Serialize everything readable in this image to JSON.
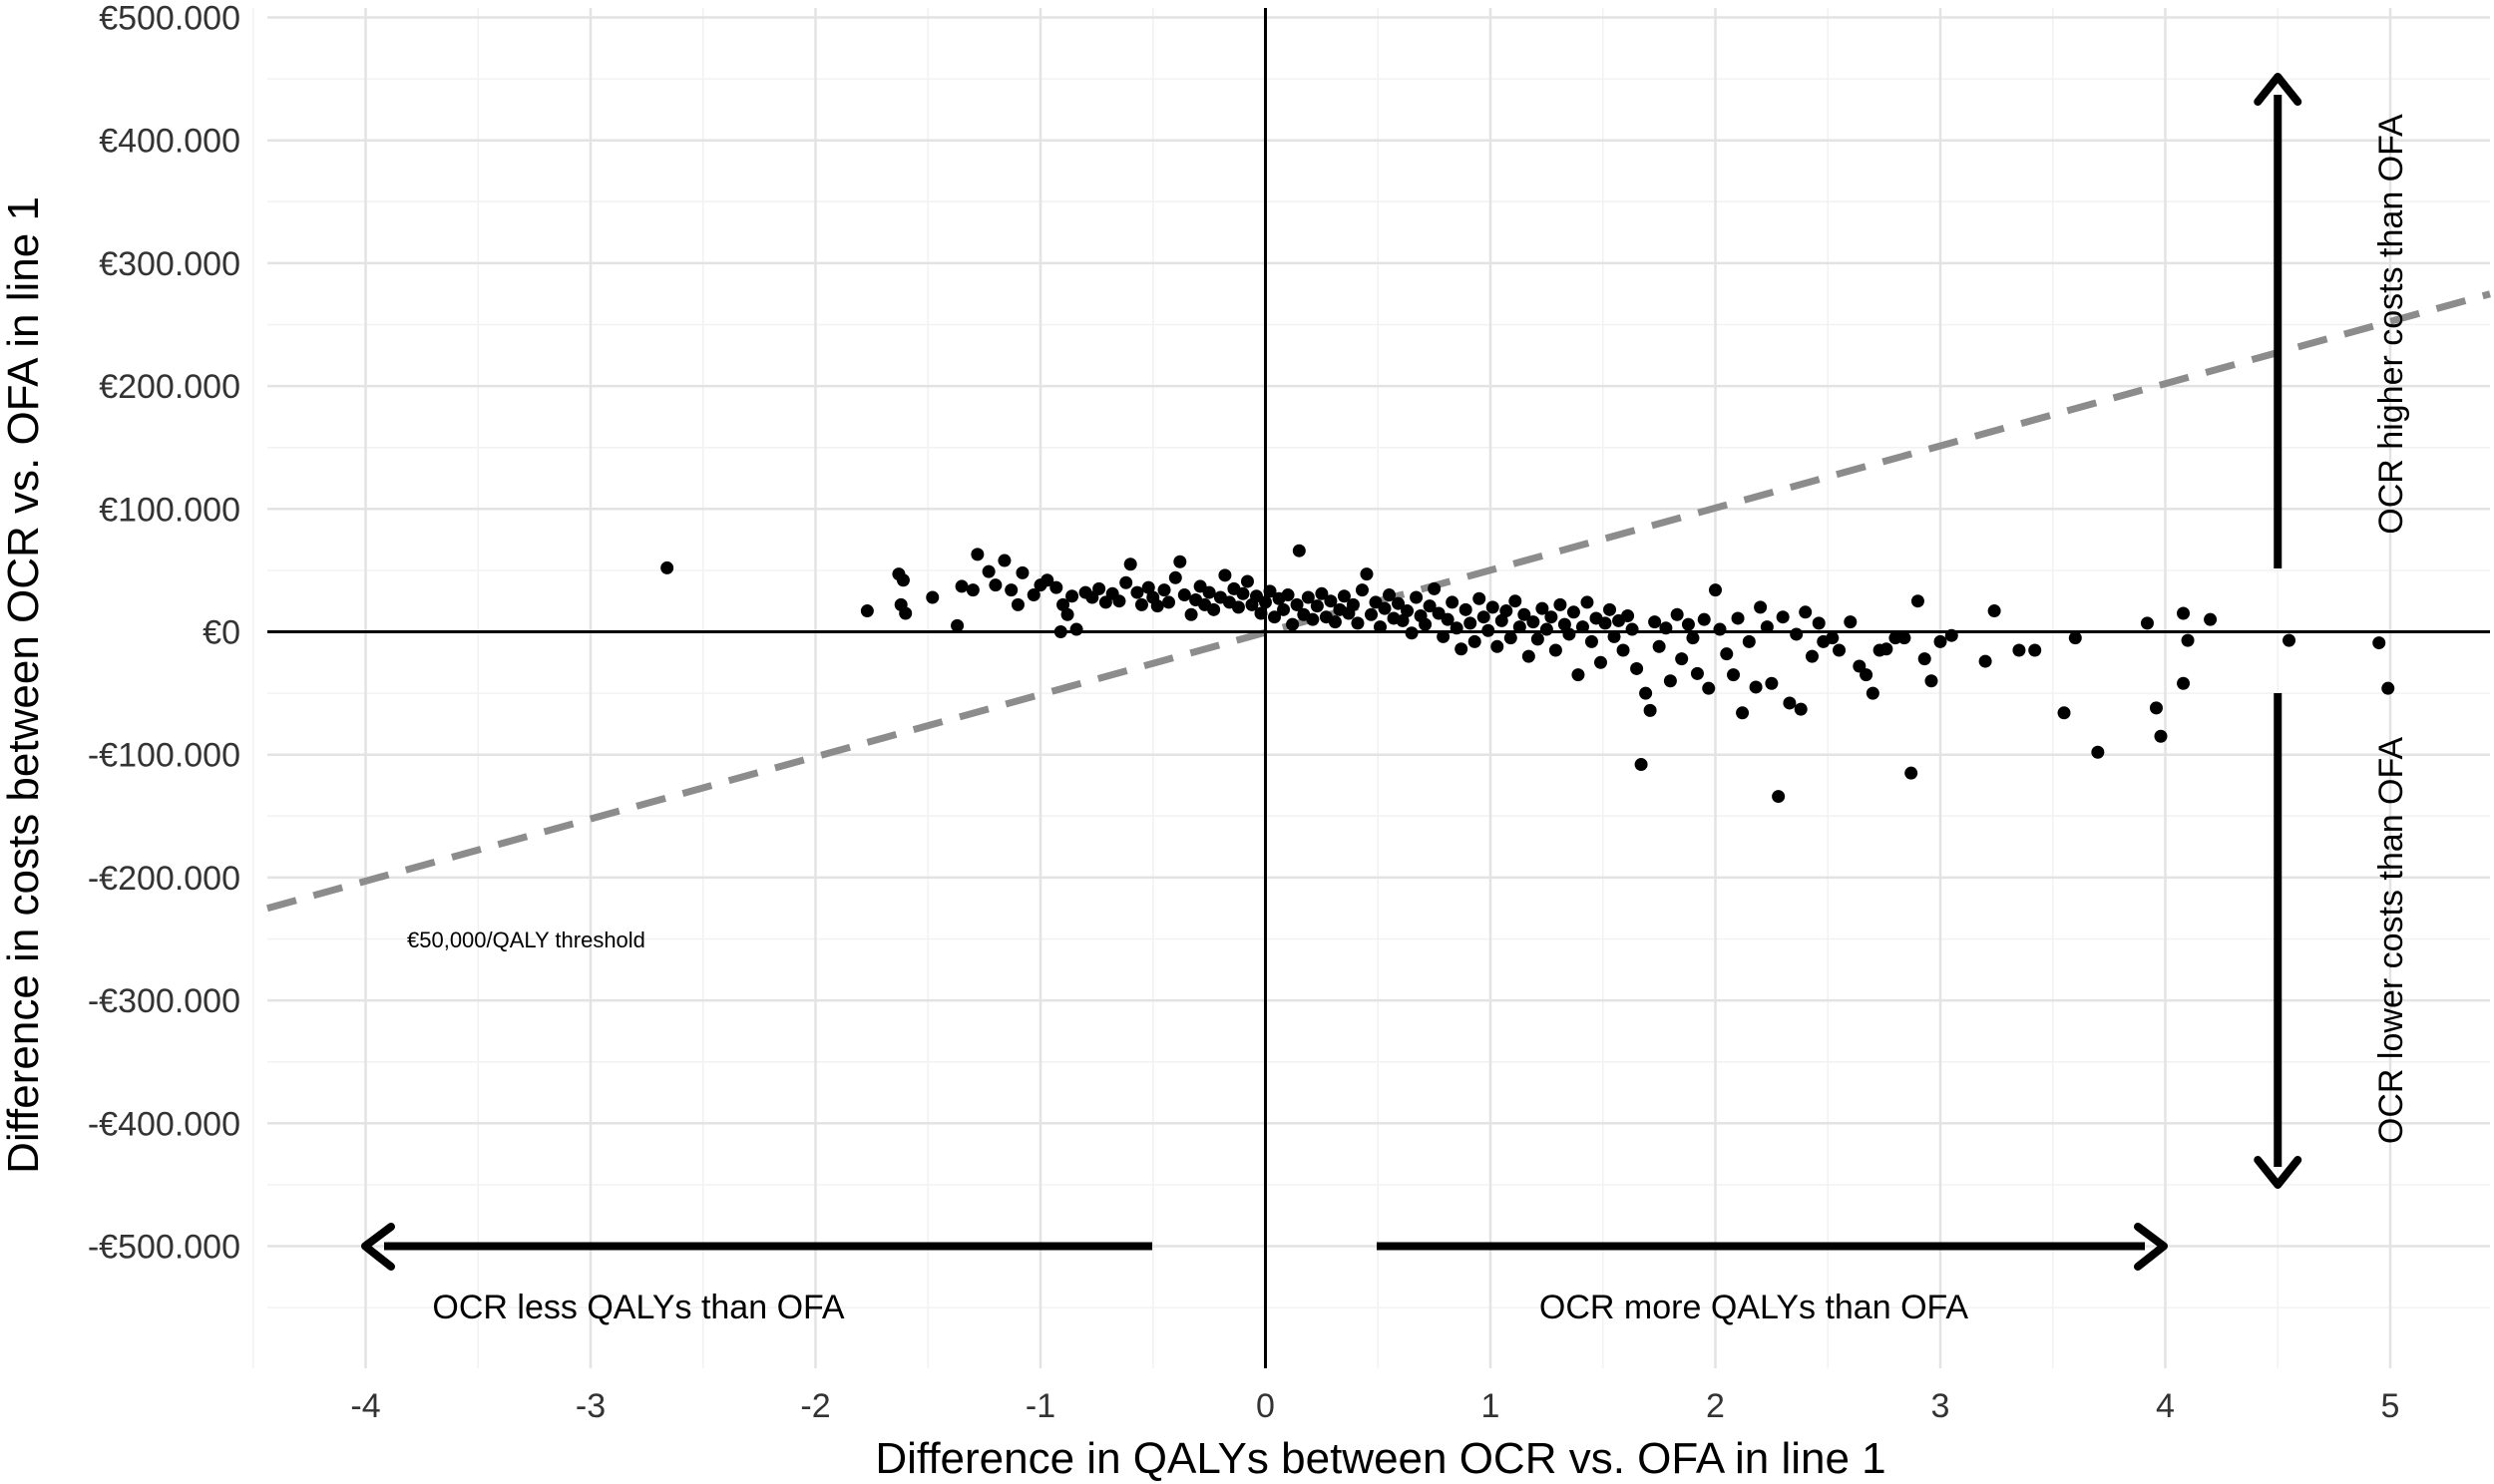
{
  "chart_data": {
    "type": "scatter",
    "title": "",
    "xlabel": "Difference in QALYs between OCR vs. OFA in line 1",
    "ylabel": "Difference in costs between OCR vs. OFA in line 1",
    "xlim": [
      -4.5,
      5.5
    ],
    "ylim": [
      -600000,
      500000
    ],
    "x_ticks": [
      -4,
      -3,
      -2,
      -1,
      0,
      1,
      2,
      3,
      4,
      5
    ],
    "x_tick_labels": [
      "-4",
      "-3",
      "-2",
      "-1",
      "0",
      "1",
      "2",
      "3",
      "4",
      "5"
    ],
    "y_ticks": [
      500000,
      400000,
      300000,
      200000,
      100000,
      0,
      -100000,
      -200000,
      -300000,
      -400000,
      -500000
    ],
    "y_tick_labels": [
      "€500.000",
      "€400.000",
      "€300.000",
      "€200.000",
      "€100.000",
      "€0",
      "-€100.000",
      "-€200.000",
      "-€300.000",
      "-€400.000",
      "-€500.000"
    ],
    "grid": true,
    "threshold": {
      "label": "€50,000/QALY threshold",
      "slope": 50000,
      "color": "#8c8c8c"
    },
    "annotations": {
      "left_arrow": "OCR less QALYs than OFA",
      "right_arrow": "OCR more QALYs than OFA",
      "up_arrow": "OCR higher costs than OFA",
      "down_arrow": "OCR lower costs than OFA"
    },
    "series": [
      {
        "points": [
          [
            -2.66,
            52000
          ],
          [
            -1.77,
            17000
          ],
          [
            -1.63,
            47000
          ],
          [
            -1.61,
            42000
          ],
          [
            -1.62,
            22000
          ],
          [
            -1.6,
            15000
          ],
          [
            -1.48,
            28000
          ],
          [
            -1.37,
            5000
          ],
          [
            -1.35,
            37000
          ],
          [
            -1.3,
            34000
          ],
          [
            -1.28,
            63000
          ],
          [
            -1.23,
            49000
          ],
          [
            -1.2,
            38000
          ],
          [
            -1.16,
            58000
          ],
          [
            -1.13,
            34000
          ],
          [
            -1.1,
            22000
          ],
          [
            -1.08,
            48000
          ],
          [
            -1.03,
            30000
          ],
          [
            -1.0,
            38000
          ],
          [
            -0.97,
            42000
          ],
          [
            -0.93,
            36000
          ],
          [
            -0.9,
            22000
          ],
          [
            -0.88,
            14000
          ],
          [
            -0.91,
            0
          ],
          [
            -0.86,
            29000
          ],
          [
            -0.84,
            2000
          ],
          [
            -0.8,
            32000
          ],
          [
            -0.77,
            28000
          ],
          [
            -0.74,
            35000
          ],
          [
            -0.71,
            24000
          ],
          [
            -0.68,
            31000
          ],
          [
            -0.65,
            25000
          ],
          [
            -0.62,
            40000
          ],
          [
            -0.6,
            55000
          ],
          [
            -0.57,
            32000
          ],
          [
            -0.55,
            22000
          ],
          [
            -0.52,
            36000
          ],
          [
            -0.5,
            28000
          ],
          [
            -0.48,
            21000
          ],
          [
            -0.45,
            34000
          ],
          [
            -0.43,
            24000
          ],
          [
            -0.4,
            44000
          ],
          [
            -0.38,
            57000
          ],
          [
            -0.36,
            30000
          ],
          [
            -0.33,
            14000
          ],
          [
            -0.31,
            26000
          ],
          [
            -0.29,
            37000
          ],
          [
            -0.27,
            22000
          ],
          [
            -0.25,
            32000
          ],
          [
            -0.23,
            18000
          ],
          [
            -0.2,
            28000
          ],
          [
            -0.18,
            46000
          ],
          [
            -0.16,
            24000
          ],
          [
            -0.14,
            35000
          ],
          [
            -0.12,
            20000
          ],
          [
            -0.1,
            31000
          ],
          [
            -0.08,
            41000
          ],
          [
            -0.06,
            22000
          ],
          [
            -0.04,
            29000
          ],
          [
            -0.02,
            15000
          ],
          [
            0.0,
            24000
          ],
          [
            0.02,
            33000
          ],
          [
            0.04,
            12000
          ],
          [
            0.06,
            27000
          ],
          [
            0.08,
            18000
          ],
          [
            0.1,
            30000
          ],
          [
            0.12,
            6000
          ],
          [
            0.14,
            22000
          ],
          [
            0.15,
            66000
          ],
          [
            0.17,
            14000
          ],
          [
            0.19,
            28000
          ],
          [
            0.21,
            10000
          ],
          [
            0.23,
            21000
          ],
          [
            0.25,
            31000
          ],
          [
            0.27,
            12000
          ],
          [
            0.29,
            25000
          ],
          [
            0.31,
            8000
          ],
          [
            0.33,
            18000
          ],
          [
            0.35,
            29000
          ],
          [
            0.37,
            15000
          ],
          [
            0.39,
            22000
          ],
          [
            0.41,
            7000
          ],
          [
            0.43,
            34000
          ],
          [
            0.45,
            47000
          ],
          [
            0.47,
            14000
          ],
          [
            0.49,
            24000
          ],
          [
            0.51,
            4000
          ],
          [
            0.53,
            19000
          ],
          [
            0.55,
            30000
          ],
          [
            0.57,
            11000
          ],
          [
            0.59,
            23000
          ],
          [
            0.61,
            9000
          ],
          [
            0.63,
            17000
          ],
          [
            0.65,
            -1000
          ],
          [
            0.67,
            28000
          ],
          [
            0.69,
            13000
          ],
          [
            0.71,
            6000
          ],
          [
            0.73,
            21000
          ],
          [
            0.75,
            35000
          ],
          [
            0.77,
            15000
          ],
          [
            0.79,
            -4000
          ],
          [
            0.81,
            10000
          ],
          [
            0.83,
            24000
          ],
          [
            0.85,
            3000
          ],
          [
            0.87,
            -14000
          ],
          [
            0.89,
            18000
          ],
          [
            0.91,
            7000
          ],
          [
            0.93,
            -8000
          ],
          [
            0.95,
            27000
          ],
          [
            0.97,
            12000
          ],
          [
            0.99,
            1000
          ],
          [
            1.01,
            20000
          ],
          [
            1.03,
            -12000
          ],
          [
            1.05,
            9000
          ],
          [
            1.07,
            17000
          ],
          [
            1.09,
            -5000
          ],
          [
            1.11,
            25000
          ],
          [
            1.13,
            4000
          ],
          [
            1.15,
            14000
          ],
          [
            1.17,
            -20000
          ],
          [
            1.19,
            8000
          ],
          [
            1.21,
            -6000
          ],
          [
            1.23,
            19000
          ],
          [
            1.25,
            2000
          ],
          [
            1.27,
            12000
          ],
          [
            1.29,
            -15000
          ],
          [
            1.31,
            22000
          ],
          [
            1.33,
            6000
          ],
          [
            1.35,
            -2000
          ],
          [
            1.37,
            16000
          ],
          [
            1.39,
            -35000
          ],
          [
            1.41,
            4000
          ],
          [
            1.43,
            24000
          ],
          [
            1.45,
            -8000
          ],
          [
            1.47,
            11000
          ],
          [
            1.49,
            -25000
          ],
          [
            1.51,
            7000
          ],
          [
            1.53,
            18000
          ],
          [
            1.55,
            -4000
          ],
          [
            1.57,
            9000
          ],
          [
            1.59,
            -15000
          ],
          [
            1.61,
            13000
          ],
          [
            1.63,
            2000
          ],
          [
            1.65,
            -30000
          ],
          [
            1.67,
            -108000
          ],
          [
            1.69,
            -50000
          ],
          [
            1.71,
            -64000
          ],
          [
            1.73,
            8000
          ],
          [
            1.75,
            -12000
          ],
          [
            1.78,
            3000
          ],
          [
            1.8,
            -40000
          ],
          [
            1.83,
            14000
          ],
          [
            1.85,
            -22000
          ],
          [
            1.88,
            6000
          ],
          [
            1.9,
            -5000
          ],
          [
            1.92,
            -34000
          ],
          [
            1.95,
            10000
          ],
          [
            1.97,
            -46000
          ],
          [
            2.0,
            34000
          ],
          [
            2.02,
            2000
          ],
          [
            2.05,
            -18000
          ],
          [
            2.08,
            -35000
          ],
          [
            2.1,
            11000
          ],
          [
            2.12,
            -66000
          ],
          [
            2.15,
            -8000
          ],
          [
            2.18,
            -45000
          ],
          [
            2.2,
            20000
          ],
          [
            2.23,
            4000
          ],
          [
            2.25,
            -42000
          ],
          [
            2.28,
            -134000
          ],
          [
            2.3,
            12000
          ],
          [
            2.33,
            -58000
          ],
          [
            2.36,
            -2000
          ],
          [
            2.38,
            -63000
          ],
          [
            2.4,
            16000
          ],
          [
            2.43,
            -20000
          ],
          [
            2.46,
            7000
          ],
          [
            2.48,
            -8000
          ],
          [
            2.52,
            -5000
          ],
          [
            2.55,
            -15000
          ],
          [
            2.6,
            8000
          ],
          [
            2.64,
            -28000
          ],
          [
            2.67,
            -35000
          ],
          [
            2.7,
            -50000
          ],
          [
            2.73,
            -15000
          ],
          [
            2.76,
            -14000
          ],
          [
            2.8,
            -5000
          ],
          [
            2.84,
            -5000
          ],
          [
            2.87,
            -115000
          ],
          [
            2.9,
            25000
          ],
          [
            2.93,
            -22000
          ],
          [
            2.96,
            -40000
          ],
          [
            3.0,
            -8000
          ],
          [
            3.05,
            -3000
          ],
          [
            3.2,
            -24000
          ],
          [
            3.24,
            17000
          ],
          [
            3.35,
            -15000
          ],
          [
            3.42,
            -15000
          ],
          [
            3.55,
            -66000
          ],
          [
            3.6,
            -5000
          ],
          [
            3.7,
            -98000
          ],
          [
            3.92,
            7000
          ],
          [
            3.96,
            -62000
          ],
          [
            3.98,
            -85000
          ],
          [
            4.08,
            15000
          ],
          [
            4.1,
            -7000
          ],
          [
            4.08,
            -42000
          ],
          [
            4.2,
            10000
          ],
          [
            4.55,
            -7000
          ],
          [
            4.95,
            -9000
          ],
          [
            4.99,
            -46000
          ]
        ]
      }
    ]
  }
}
